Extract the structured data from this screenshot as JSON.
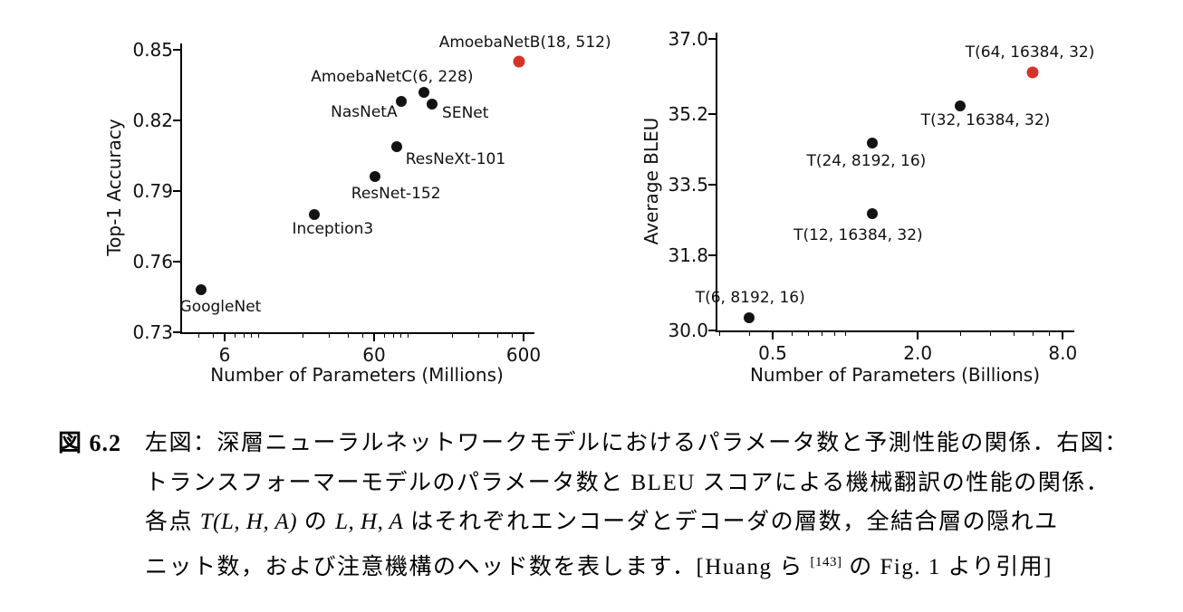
{
  "page": {
    "background": "#ffffff"
  },
  "colors": {
    "axis": "#000000",
    "text": "#111111",
    "point_black": "#131313",
    "point_highlight_red": "#d23527"
  },
  "chart_data": [
    {
      "type": "scatter",
      "title": "",
      "xlabel": "Number of Parameters (Millions)",
      "ylabel": "Top-1 Accuracy",
      "x_scale": "log",
      "y_scale": "linear",
      "xlim": [
        3,
        700
      ],
      "ylim": [
        0.73,
        0.85
      ],
      "grid": false,
      "legend": "none",
      "xticks": {
        "values": [
          6,
          60,
          600
        ],
        "labels": [
          "6",
          "60",
          "600"
        ]
      },
      "yticks": {
        "values": [
          0.73,
          0.76,
          0.79,
          0.82,
          0.85
        ],
        "labels": [
          "0.73",
          "0.76",
          "0.79",
          "0.82",
          "0.85"
        ]
      },
      "points": [
        {
          "label": "GoogleNet",
          "x": 4.2,
          "y": 0.748,
          "highlight": false
        },
        {
          "label": "Inception3",
          "x": 24,
          "y": 0.78,
          "highlight": false
        },
        {
          "label": "ResNet-152",
          "x": 61,
          "y": 0.796,
          "highlight": false
        },
        {
          "label": "ResNeXt-101",
          "x": 85,
          "y": 0.809,
          "highlight": false
        },
        {
          "label": "NasNetA",
          "x": 91,
          "y": 0.828,
          "highlight": false
        },
        {
          "label": "AmoebaNetC(6, 228)",
          "x": 129,
          "y": 0.832,
          "highlight": false
        },
        {
          "label": "SENet",
          "x": 146,
          "y": 0.827,
          "highlight": false
        },
        {
          "label": "AmoebaNetB(18, 512)",
          "x": 557,
          "y": 0.845,
          "highlight": true
        }
      ]
    },
    {
      "type": "scatter",
      "title": "",
      "xlabel": "Number of Parameters (Billions)",
      "ylabel": "Average BLEU",
      "x_scale": "log",
      "y_scale": "linear",
      "xlim": [
        0.29,
        9
      ],
      "ylim": [
        30.0,
        37.0
      ],
      "grid": false,
      "legend": "none",
      "xticks": {
        "values": [
          0.5,
          2.0,
          8.0
        ],
        "labels": [
          "0.5",
          "2.0",
          "8.0"
        ]
      },
      "yticks": {
        "values": [
          30.0,
          31.8,
          33.5,
          35.2,
          37.0
        ],
        "labels": [
          "30.0",
          "31.8",
          "33.5",
          "35.2",
          "37.0"
        ]
      },
      "points": [
        {
          "label": "T(6, 8192, 16)",
          "x": 0.4,
          "y": 30.3,
          "highlight": false
        },
        {
          "label": "T(12, 16384, 32)",
          "x": 1.3,
          "y": 32.8,
          "highlight": false
        },
        {
          "label": "T(24, 8192, 16)",
          "x": 1.3,
          "y": 34.5,
          "highlight": false
        },
        {
          "label": "T(32, 16384, 32)",
          "x": 3.0,
          "y": 35.4,
          "highlight": false
        },
        {
          "label": "T(64, 16384, 32)",
          "x": 6.0,
          "y": 36.2,
          "highlight": true
        }
      ]
    }
  ],
  "caption": {
    "fig_label": "図 6.2",
    "lines": [
      [
        {
          "t": "左図：深層ニューラルネットワークモデルにおけるパラメータ数と予測性能の関係．右図："
        }
      ],
      [
        {
          "t": "トランスフォーマーモデルのパラメータ数と BLEU スコアによる機械翻訳の性能の関係．"
        }
      ],
      [
        {
          "t": "各点 "
        },
        {
          "t": "T(L, H, A)",
          "math": true
        },
        {
          "t": " の "
        },
        {
          "t": "L, H, A",
          "math": true
        },
        {
          "t": " はそれぞれエンコーダとデコーダの層数，全結合層の隠れユ"
        }
      ],
      [
        {
          "t": "ニット数，および注意機構のヘッド数を表します．[Huang ら "
        },
        {
          "t": "[143]",
          "sup": true
        },
        {
          "t": " の Fig. 1 より引用]"
        }
      ]
    ]
  }
}
